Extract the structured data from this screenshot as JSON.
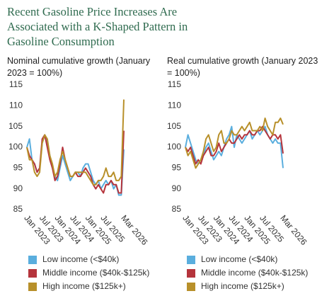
{
  "title": "Recent Gasoline Price Increases Are Associated with a K-Shaped Pattern in Gasoline Consumption",
  "chart_data": [
    {
      "type": "line",
      "title": "Nominal cumulative growth (January 2023 = 100%)",
      "categories": [
        "Jan 2023",
        null,
        null,
        null,
        null,
        null,
        "Jul 2023",
        null,
        null,
        null,
        null,
        null,
        "Jan 2024",
        null,
        null,
        null,
        null,
        null,
        "Jul 2024",
        null,
        null,
        null,
        null,
        null,
        "Jan 2025",
        null,
        null,
        null,
        null,
        null,
        "Jul 2025",
        null,
        null,
        null,
        null,
        null,
        null,
        null,
        "Mar 2026"
      ],
      "ylim": [
        85,
        115
      ],
      "yticks": [
        85,
        90,
        95,
        100,
        105,
        110,
        115
      ],
      "series": [
        {
          "name": "Low income (<$40k)",
          "color": "#5aaede",
          "values": [
            100,
            102,
            97,
            96,
            94,
            95,
            101,
            103,
            101,
            98,
            95,
            93,
            92,
            95,
            98,
            96,
            94,
            92,
            93,
            94,
            94,
            93,
            95,
            96,
            96,
            94,
            92,
            91,
            92,
            90,
            91,
            92,
            91,
            92,
            90,
            91,
            88.5,
            88.5,
            99.5
          ]
        },
        {
          "name": "Middle income ($40k-$125k)",
          "color": "#b5343c",
          "values": [
            100,
            98,
            97,
            96,
            94,
            95,
            102,
            103,
            100,
            97,
            95,
            92,
            93,
            96,
            100,
            97,
            95,
            93,
            93,
            94,
            93,
            93,
            94,
            95,
            94,
            93,
            91,
            90,
            91,
            90,
            89,
            91,
            91,
            92,
            91,
            91,
            89,
            89,
            104
          ]
        },
        {
          "name": "High income ($125k+)",
          "color": "#b8902a",
          "values": [
            100,
            97,
            97,
            94,
            93,
            94,
            101,
            103,
            102,
            98,
            96,
            93,
            94,
            97,
            99,
            97,
            95,
            93,
            93,
            94,
            94,
            94,
            94,
            94,
            93,
            92,
            91,
            91,
            92,
            92,
            93,
            95,
            93,
            93,
            94,
            92,
            92,
            93,
            111.5
          ]
        }
      ]
    },
    {
      "type": "line",
      "title": "Real cumulative growth (January 2023 = 100%)",
      "categories": [
        "Jan 2023",
        null,
        null,
        null,
        null,
        null,
        "Jul 2023",
        null,
        null,
        null,
        null,
        null,
        "Jan 2024",
        null,
        null,
        null,
        null,
        null,
        "Jul 2024",
        null,
        null,
        null,
        null,
        null,
        "Jan 2025",
        null,
        null,
        null,
        null,
        null,
        "Jul 2025",
        null,
        null,
        null,
        null,
        null,
        null,
        null,
        "Mar 2026"
      ],
      "ylim": [
        85,
        115
      ],
      "yticks": [
        85,
        90,
        95,
        100,
        105,
        110,
        115
      ],
      "series": [
        {
          "name": "Low income (<$40k)",
          "color": "#5aaede",
          "values": [
            100,
            103,
            101,
            99,
            97,
            96,
            97,
            98,
            100,
            101,
            99,
            97,
            98,
            99,
            98,
            100,
            102,
            103,
            105,
            100,
            103,
            102,
            101,
            102,
            103,
            104,
            102,
            103,
            104,
            103,
            104,
            105,
            103,
            102,
            101,
            102,
            101,
            101,
            95
          ]
        },
        {
          "name": "Middle income ($40k-$125k)",
          "color": "#b5343c",
          "values": [
            100,
            99,
            100,
            98,
            96,
            97,
            96,
            98,
            99,
            100,
            98,
            98,
            99,
            101,
            99,
            100,
            101,
            102,
            101,
            101,
            102,
            103,
            102,
            103,
            103,
            104,
            103,
            103,
            104,
            104,
            105,
            104,
            103,
            102,
            103,
            103,
            102,
            103,
            98.5
          ]
        },
        {
          "name": "High income ($125k+)",
          "color": "#b8902a",
          "values": [
            100,
            98,
            99,
            97,
            95,
            96,
            97,
            99,
            102,
            103,
            101,
            99,
            100,
            103,
            104,
            101,
            101,
            102,
            104,
            103,
            103,
            104,
            105,
            104,
            105,
            106,
            104,
            104,
            104,
            105,
            104,
            107,
            105,
            104,
            103,
            106,
            106,
            107,
            105.5
          ]
        }
      ]
    }
  ]
}
